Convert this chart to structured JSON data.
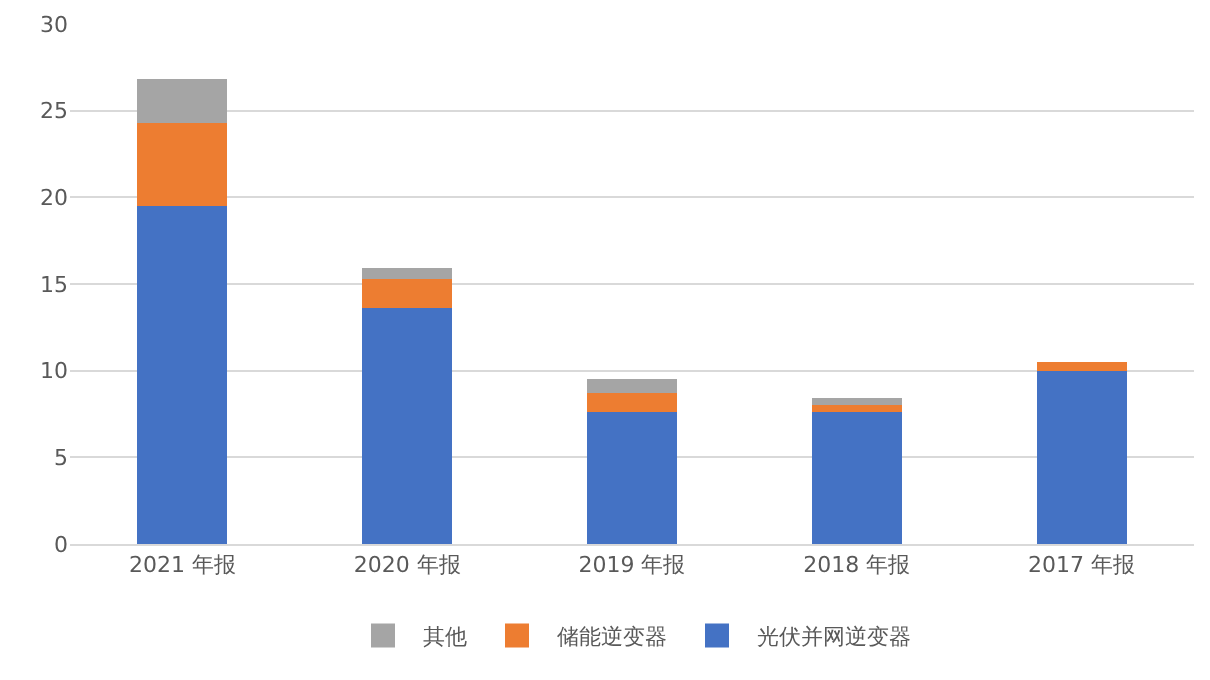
{
  "chart_data": {
    "type": "bar",
    "stacked": true,
    "categories": [
      "2021 年报",
      "2020 年报",
      "2019 年报",
      "2018 年报",
      "2017 年报"
    ],
    "series": [
      {
        "name": "光伏并网逆变器",
        "color": "#4472c4",
        "values": [
          19.5,
          13.6,
          7.6,
          7.6,
          10.0
        ]
      },
      {
        "name": "储能逆变器",
        "color": "#ed7d31",
        "values": [
          4.8,
          1.7,
          1.1,
          0.4,
          0.5
        ]
      },
      {
        "name": "其他",
        "color": "#a5a5a5",
        "values": [
          2.5,
          0.6,
          0.8,
          0.4,
          0
        ]
      }
    ],
    "ylim": [
      0,
      30
    ],
    "yticks": [
      0,
      5,
      10,
      15,
      20,
      25,
      30
    ],
    "grid": "y",
    "legend": "bottom"
  }
}
